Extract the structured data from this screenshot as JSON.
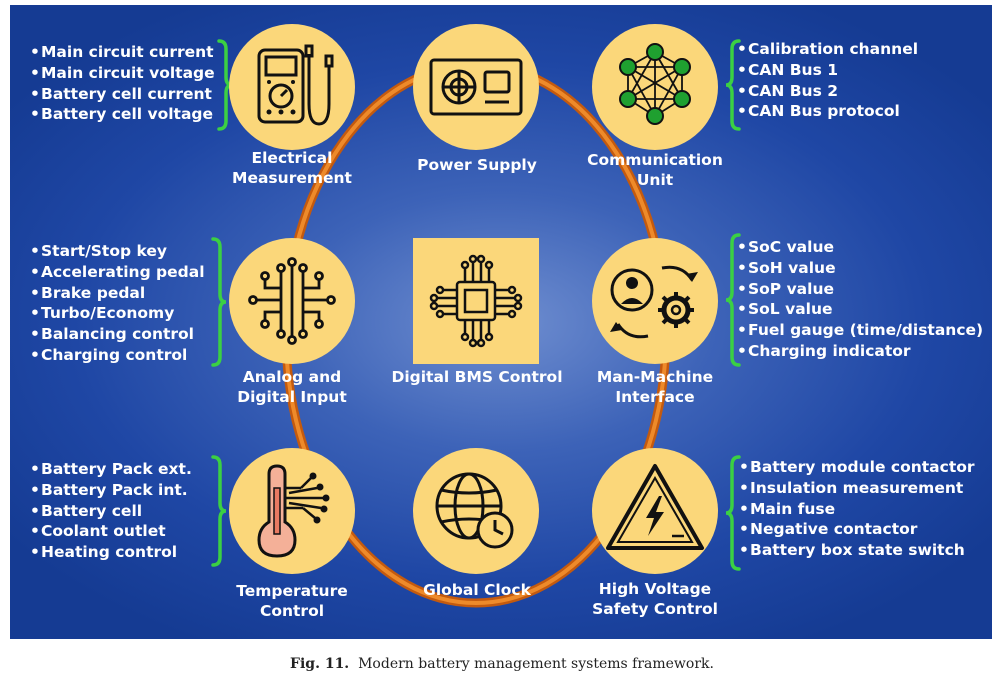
{
  "colors": {
    "panel": "#1f47a5",
    "node": "#fbd77a",
    "ring": "#e07a1c",
    "brace": "#3bd043",
    "text": "#ffffff"
  },
  "nodes": {
    "electrical": {
      "label": "Electrical\nMeasurement",
      "icon": "multimeter-icon",
      "items": [
        "Main circuit current",
        "Main circuit voltage",
        "Battery cell current",
        "Battery cell voltage"
      ]
    },
    "power": {
      "label": "Power Supply",
      "icon": "power-supply-icon"
    },
    "communication": {
      "label": "Communication\nUnit",
      "icon": "network-icon",
      "items": [
        "Calibration channel",
        "CAN Bus 1",
        "CAN Bus 2",
        "CAN Bus protocol"
      ]
    },
    "analog": {
      "label": "Analog and\nDigital Input",
      "icon": "input-circuit-icon",
      "items": [
        "Start/Stop key",
        "Accelerating pedal",
        "Brake pedal",
        "Turbo/Economy",
        "Balancing control",
        "Charging control"
      ]
    },
    "bms": {
      "label": "Digital BMS Control",
      "icon": "chip-icon"
    },
    "mmi": {
      "label": "Man-Machine\nInterface",
      "icon": "user-gear-icon",
      "items": [
        "SoC value",
        "SoH value",
        "SoP value",
        "SoL value",
        "Fuel gauge (time/distance)",
        "Charging indicator"
      ]
    },
    "temperature": {
      "label": "Temperature\nControl",
      "icon": "thermometer-icon",
      "items": [
        "Battery Pack ext.",
        "Battery Pack int.",
        "Battery cell",
        "Coolant outlet",
        "Heating control"
      ]
    },
    "clock": {
      "label": "Global Clock",
      "icon": "globe-clock-icon"
    },
    "hv": {
      "label": "High Voltage\nSafety Control",
      "icon": "high-voltage-warning-icon",
      "items": [
        "Battery module contactor",
        "Insulation measurement",
        "Main fuse",
        "Negative contactor",
        "Battery box state switch"
      ]
    }
  },
  "caption": {
    "label": "Fig. 11.",
    "text": "Modern battery management systems framework."
  }
}
